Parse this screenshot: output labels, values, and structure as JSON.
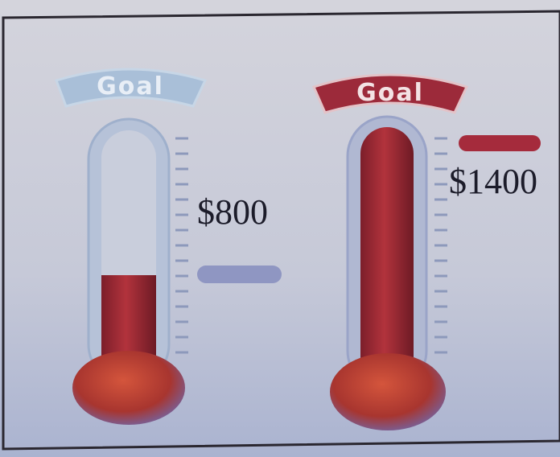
{
  "thermometers": [
    {
      "banner": "Goal",
      "amount": "$800"
    },
    {
      "banner": "Goal",
      "amount": "$1400"
    }
  ]
}
